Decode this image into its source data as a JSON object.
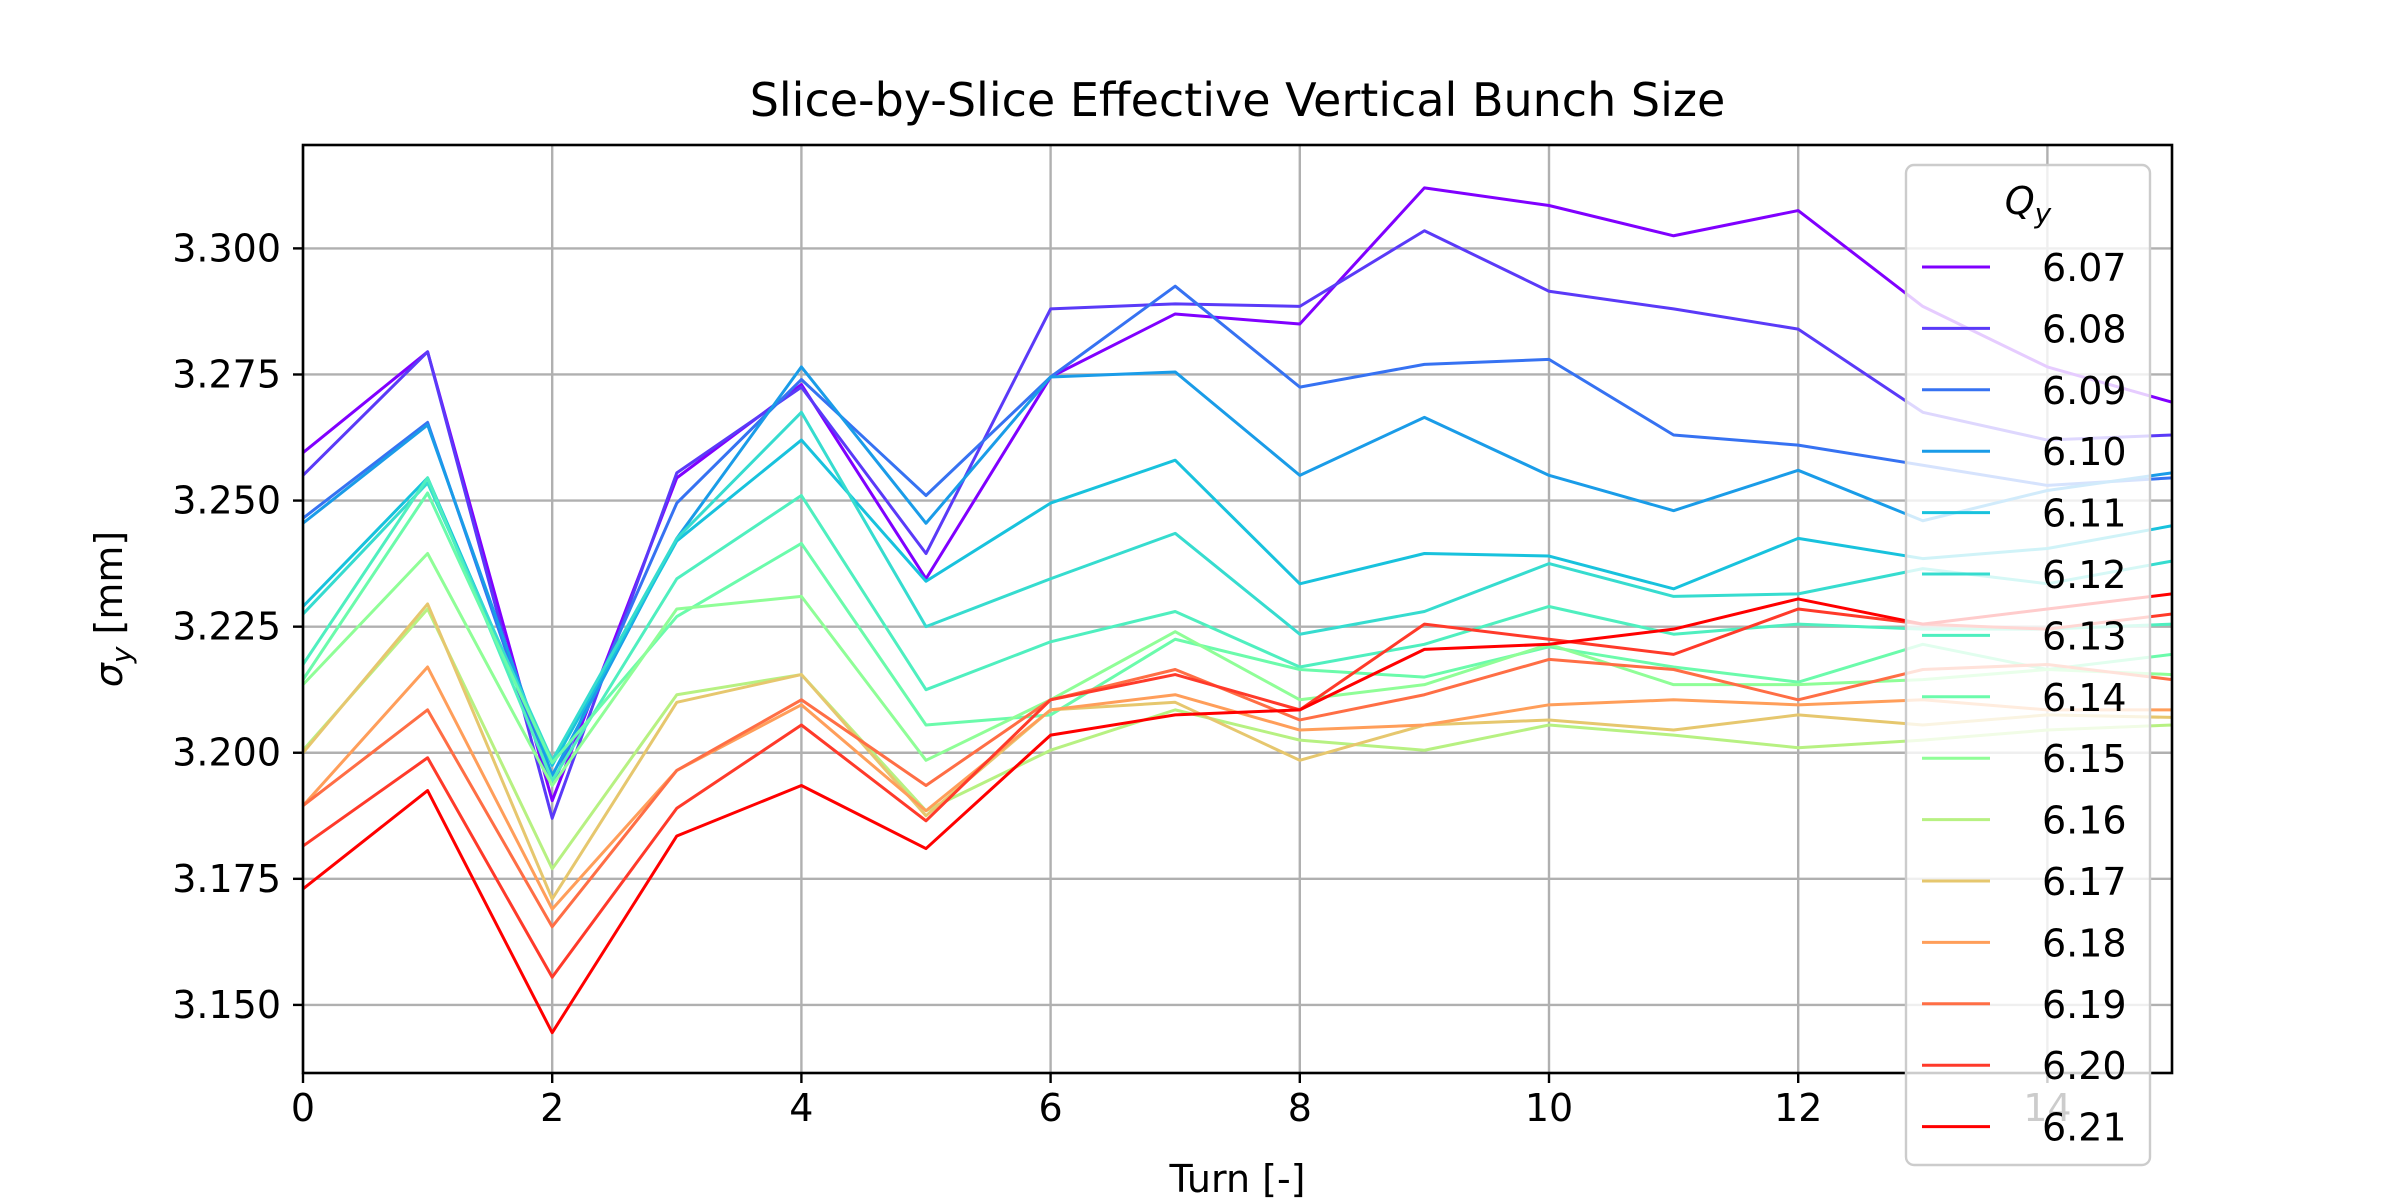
{
  "chart_data": {
    "type": "line",
    "title": "Slice-by-Slice Effective Vertical Bunch Size",
    "xlabel": "Turn [-]",
    "ylabel": {
      "symbol": "σ",
      "sub": "y",
      "unit": " [mm]"
    },
    "xlim": [
      0,
      15
    ],
    "ylim": [
      3.1365,
      3.3205
    ],
    "xticks": [
      0,
      2,
      4,
      6,
      8,
      10,
      12,
      14
    ],
    "xtick_labels": [
      "0",
      "2",
      "4",
      "6",
      "8",
      "10",
      "12",
      "14"
    ],
    "yticks": [
      3.15,
      3.175,
      3.2,
      3.225,
      3.25,
      3.275,
      3.3
    ],
    "ytick_labels": [
      "3.150",
      "3.175",
      "3.200",
      "3.225",
      "3.250",
      "3.275",
      "3.300"
    ],
    "grid": true,
    "legend": {
      "title_symbol": "Q",
      "title_sub": "y",
      "placement": "upper right"
    },
    "x": [
      0,
      1,
      2,
      3,
      4,
      5,
      6,
      7,
      8,
      9,
      10,
      11,
      12,
      13,
      14,
      15
    ],
    "series": [
      {
        "name": "6.07",
        "color": "#8000ff",
        "values": [
          3.2595,
          3.2795,
          3.1905,
          3.2545,
          3.273,
          3.2345,
          3.2745,
          3.287,
          3.285,
          3.312,
          3.3085,
          3.3025,
          3.3075,
          3.2885,
          3.2765,
          3.2695
        ]
      },
      {
        "name": "6.08",
        "color": "#5a3af8",
        "values": [
          3.255,
          3.2795,
          3.187,
          3.2555,
          3.2725,
          3.2395,
          3.288,
          3.289,
          3.2885,
          3.3035,
          3.2915,
          3.288,
          3.284,
          3.2675,
          3.262,
          3.263
        ]
      },
      {
        "name": "6.09",
        "color": "#3672f2",
        "values": [
          3.2465,
          3.2655,
          3.1935,
          3.2495,
          3.274,
          3.251,
          3.2745,
          3.2925,
          3.2725,
          3.277,
          3.278,
          3.263,
          3.261,
          3.257,
          3.253,
          3.2545
        ]
      },
      {
        "name": "6.10",
        "color": "#1a9ce8",
        "values": [
          3.2455,
          3.265,
          3.1955,
          3.2425,
          3.2765,
          3.2455,
          3.2745,
          3.2755,
          3.255,
          3.2665,
          3.255,
          3.248,
          3.256,
          3.246,
          3.252,
          3.2555
        ]
      },
      {
        "name": "6.11",
        "color": "#18c2dd",
        "values": [
          3.229,
          3.2545,
          3.1975,
          3.242,
          3.262,
          3.234,
          3.2495,
          3.258,
          3.2335,
          3.2395,
          3.239,
          3.2325,
          3.2425,
          3.2385,
          3.2405,
          3.245
        ]
      },
      {
        "name": "6.12",
        "color": "#36dccf",
        "values": [
          3.2275,
          3.2535,
          3.1985,
          3.2425,
          3.2675,
          3.225,
          3.2345,
          3.2435,
          3.2235,
          3.228,
          3.2375,
          3.231,
          3.2315,
          3.2365,
          3.2335,
          3.238
        ]
      },
      {
        "name": "6.13",
        "color": "#4fefbf",
        "values": [
          3.2175,
          3.2545,
          3.1945,
          3.2345,
          3.251,
          3.2125,
          3.222,
          3.228,
          3.217,
          3.2215,
          3.229,
          3.2235,
          3.2255,
          3.2245,
          3.2245,
          3.2255
        ]
      },
      {
        "name": "6.14",
        "color": "#6bfbab",
        "values": [
          3.2145,
          3.2515,
          3.198,
          3.227,
          3.2415,
          3.2055,
          3.2075,
          3.2225,
          3.2165,
          3.215,
          3.221,
          3.217,
          3.214,
          3.2215,
          3.2165,
          3.2195
        ]
      },
      {
        "name": "6.15",
        "color": "#8ffe97",
        "values": [
          3.2135,
          3.2395,
          3.1935,
          3.2285,
          3.231,
          3.1985,
          3.2105,
          3.224,
          3.2105,
          3.2135,
          3.2215,
          3.2135,
          3.2135,
          3.2145,
          3.2165,
          3.2155
        ]
      },
      {
        "name": "6.16",
        "color": "#b7f182",
        "values": [
          3.2005,
          3.2285,
          3.177,
          3.2115,
          3.2155,
          3.1885,
          3.2005,
          3.2085,
          3.2025,
          3.2005,
          3.2055,
          3.2035,
          3.201,
          3.2025,
          3.2045,
          3.2055
        ]
      },
      {
        "name": "6.17",
        "color": "#e6c76e",
        "values": [
          3.2,
          3.2295,
          3.171,
          3.21,
          3.2155,
          3.1875,
          3.2085,
          3.21,
          3.1985,
          3.2055,
          3.2065,
          3.2045,
          3.2075,
          3.2055,
          3.2075,
          3.207
        ]
      },
      {
        "name": "6.18",
        "color": "#ff9e5a",
        "values": [
          3.1895,
          3.217,
          3.169,
          3.1965,
          3.2095,
          3.1885,
          3.2085,
          3.2115,
          3.2045,
          3.2055,
          3.2095,
          3.2105,
          3.2095,
          3.2105,
          3.2085,
          3.2085
        ]
      },
      {
        "name": "6.19",
        "color": "#ff6e45",
        "values": [
          3.1895,
          3.2085,
          3.1655,
          3.1965,
          3.2105,
          3.1935,
          3.2105,
          3.2165,
          3.2065,
          3.2115,
          3.2185,
          3.2165,
          3.2105,
          3.2165,
          3.2175,
          3.2145
        ]
      },
      {
        "name": "6.20",
        "color": "#ff3a2a",
        "values": [
          3.1815,
          3.199,
          3.1555,
          3.189,
          3.2055,
          3.1865,
          3.2105,
          3.2155,
          3.2085,
          3.2255,
          3.2225,
          3.2195,
          3.2285,
          3.2255,
          3.2245,
          3.2275
        ]
      },
      {
        "name": "6.21",
        "color": "#ff0000",
        "values": [
          3.173,
          3.1925,
          3.1445,
          3.1835,
          3.1935,
          3.181,
          3.2035,
          3.2075,
          3.2085,
          3.2205,
          3.2215,
          3.2245,
          3.2305,
          3.2255,
          3.2285,
          3.2315
        ]
      }
    ]
  }
}
